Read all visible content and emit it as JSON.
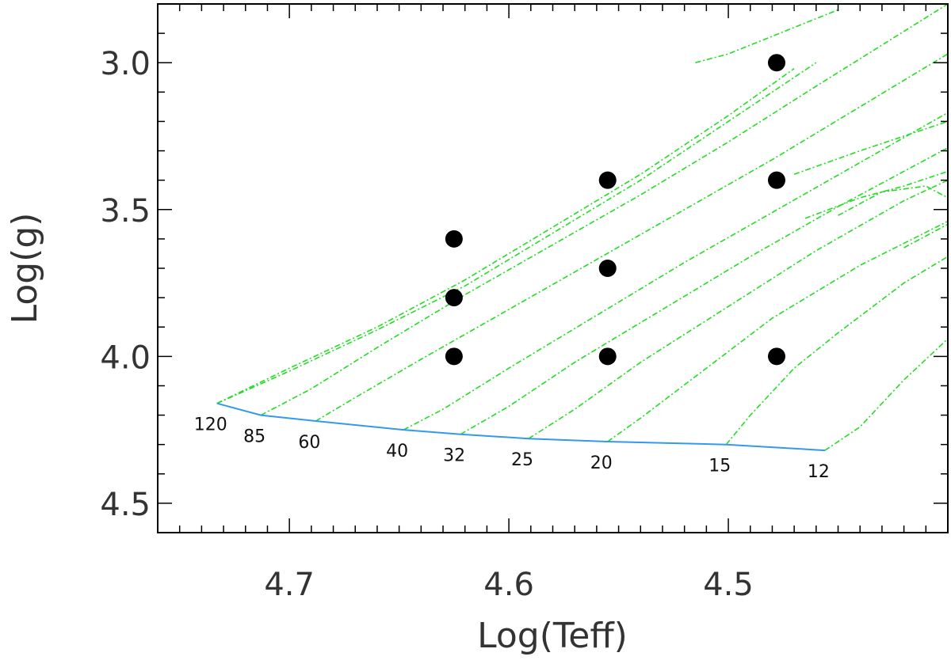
{
  "chart_data": {
    "type": "line",
    "title": "",
    "xlabel": "Log(Teff)",
    "ylabel": "Log(g)",
    "xlim": [
      4.76,
      4.4
    ],
    "ylim": [
      4.6,
      2.8
    ],
    "x_ticks": [
      4.7,
      4.6,
      4.5
    ],
    "x_tick_labels": [
      "4.7",
      "4.6",
      "4.5"
    ],
    "y_ticks": [
      3.0,
      3.5,
      4.0,
      4.5
    ],
    "y_tick_labels": [
      "3.0",
      "3.5",
      "4.0",
      "4.5"
    ],
    "grid": false,
    "legend": "none",
    "colors": {
      "tracks": "#22dd22",
      "zams": "#3399ee",
      "points": "#000000",
      "axes": "#000000"
    },
    "zams": {
      "x": [
        4.733,
        4.713,
        4.688,
        4.648,
        4.622,
        4.591,
        4.555,
        4.501,
        4.456
      ],
      "y": [
        4.16,
        4.2,
        4.22,
        4.25,
        4.265,
        4.28,
        4.29,
        4.3,
        4.32
      ]
    },
    "mass_labels": [
      {
        "text": "120",
        "x": 4.733,
        "y": 4.16
      },
      {
        "text": "85",
        "x": 4.713,
        "y": 4.2
      },
      {
        "text": "60",
        "x": 4.688,
        "y": 4.22
      },
      {
        "text": "40",
        "x": 4.648,
        "y": 4.25
      },
      {
        "text": "32",
        "x": 4.622,
        "y": 4.265
      },
      {
        "text": "25",
        "x": 4.591,
        "y": 4.28
      },
      {
        "text": "20",
        "x": 4.555,
        "y": 4.29
      },
      {
        "text": "15",
        "x": 4.501,
        "y": 4.3
      },
      {
        "text": "12",
        "x": 4.456,
        "y": 4.32
      }
    ],
    "series": [
      {
        "x": [
          4.733,
          4.7,
          4.66,
          4.62,
          4.58,
          4.54,
          4.5,
          4.47
        ],
        "y": [
          4.16,
          4.04,
          3.9,
          3.74,
          3.56,
          3.38,
          3.18,
          3.02
        ]
      },
      {
        "x": [
          4.733,
          4.7,
          4.66,
          4.62,
          4.58,
          4.54,
          4.5,
          4.46
        ],
        "y": [
          4.16,
          4.05,
          3.91,
          3.76,
          3.58,
          3.4,
          3.2,
          3.0
        ]
      },
      {
        "x": [
          4.713,
          4.69,
          4.66,
          4.62,
          4.58,
          4.54,
          4.5,
          4.46,
          4.4
        ],
        "y": [
          4.2,
          4.11,
          3.97,
          3.79,
          3.62,
          3.45,
          3.27,
          3.08,
          2.8
        ]
      },
      {
        "x": [
          4.688,
          4.67,
          4.64,
          4.6,
          4.56,
          4.52,
          4.48,
          4.44,
          4.4
        ],
        "y": [
          4.22,
          4.14,
          4.01,
          3.84,
          3.67,
          3.5,
          3.33,
          3.15,
          2.97
        ]
      },
      {
        "x": [
          4.648,
          4.63,
          4.6,
          4.56,
          4.52,
          4.48,
          4.44,
          4.4
        ],
        "y": [
          4.25,
          4.18,
          4.04,
          3.86,
          3.68,
          3.51,
          3.34,
          3.17
        ]
      },
      {
        "x": [
          4.622,
          4.6,
          4.57,
          4.53,
          4.49,
          4.45,
          4.4
        ],
        "y": [
          4.265,
          4.17,
          4.02,
          3.84,
          3.66,
          3.49,
          3.29
        ]
      },
      {
        "x": [
          4.591,
          4.57,
          4.54,
          4.5,
          4.46,
          4.42,
          4.4
        ],
        "y": [
          4.28,
          4.18,
          4.02,
          3.83,
          3.64,
          3.47,
          3.4
        ]
      },
      {
        "x": [
          4.555,
          4.54,
          4.51,
          4.48,
          4.44,
          4.4
        ],
        "y": [
          4.29,
          4.21,
          4.04,
          3.87,
          3.69,
          3.54
        ]
      },
      {
        "x": [
          4.501,
          4.49,
          4.47,
          4.45,
          4.42,
          4.4
        ],
        "y": [
          4.3,
          4.2,
          4.04,
          3.92,
          3.75,
          3.66
        ]
      },
      {
        "x": [
          4.456,
          4.44,
          4.42,
          4.4
        ],
        "y": [
          4.32,
          4.24,
          4.08,
          3.94
        ]
      },
      {
        "x": [
          4.515,
          4.5,
          4.47,
          4.45
        ],
        "y": [
          3.0,
          2.97,
          2.88,
          2.82
        ]
      },
      {
        "x": [
          4.47,
          4.44,
          4.42,
          4.4
        ],
        "y": [
          3.38,
          3.3,
          3.25,
          3.2
        ]
      },
      {
        "x": [
          4.465,
          4.44,
          4.42,
          4.4
        ],
        "y": [
          3.53,
          3.46,
          3.42,
          3.37
        ]
      },
      {
        "x": [
          4.45,
          4.43,
          4.41,
          4.4
        ],
        "y": [
          3.52,
          3.44,
          3.42,
          3.46
        ]
      },
      {
        "x": [
          4.42,
          4.41,
          4.4
        ],
        "y": [
          3.63,
          3.59,
          3.55
        ]
      }
    ],
    "points": [
      {
        "x": 4.478,
        "y": 3.0
      },
      {
        "x": 4.555,
        "y": 3.4
      },
      {
        "x": 4.478,
        "y": 3.4
      },
      {
        "x": 4.625,
        "y": 3.6
      },
      {
        "x": 4.555,
        "y": 3.7
      },
      {
        "x": 4.625,
        "y": 3.8
      },
      {
        "x": 4.625,
        "y": 4.0
      },
      {
        "x": 4.555,
        "y": 4.0
      },
      {
        "x": 4.478,
        "y": 4.0
      }
    ]
  }
}
